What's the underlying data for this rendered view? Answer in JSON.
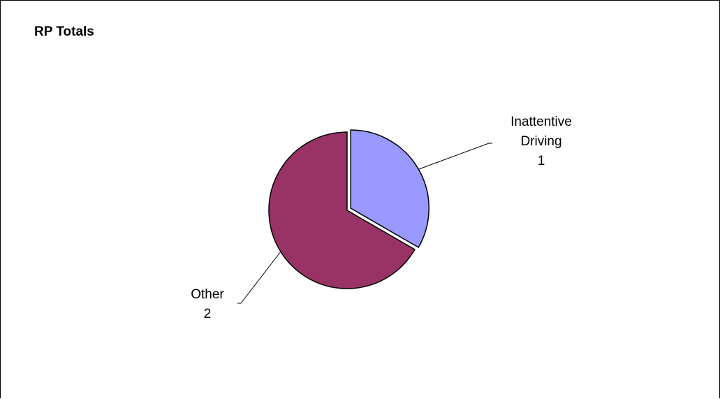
{
  "chart_data": {
    "type": "pie",
    "title": "RP Totals",
    "slices": [
      {
        "label_lines": [
          "Inattentive",
          "Driving"
        ],
        "value": 1,
        "value_label": "1",
        "color": "#9999ff"
      },
      {
        "label_lines": [
          "Other"
        ],
        "value": 2,
        "value_label": "2",
        "color": "#993366"
      }
    ],
    "exploded_slice": 0,
    "legend": "none",
    "data_labels": "category and value"
  }
}
